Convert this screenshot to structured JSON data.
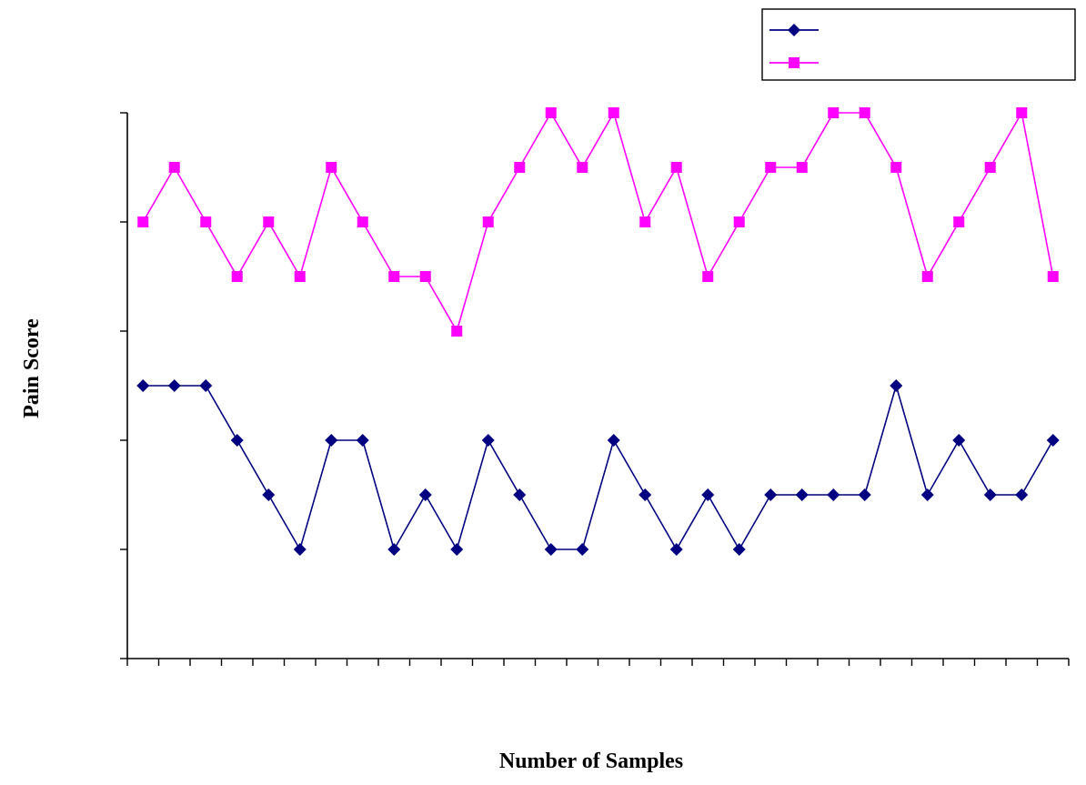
{
  "chart_data": {
    "type": "line",
    "title": "",
    "xlabel": "Number of Samples",
    "ylabel": "Pain Score",
    "x": [
      1,
      2,
      3,
      4,
      5,
      6,
      7,
      8,
      9,
      10,
      11,
      12,
      13,
      14,
      15,
      16,
      17,
      18,
      19,
      20,
      21,
      22,
      23,
      24,
      25,
      26,
      27,
      28,
      29,
      30
    ],
    "xlim": [
      0.5,
      30.5
    ],
    "ylim": [
      0,
      10
    ],
    "grid": false,
    "legend": "top-right",
    "series": [
      {
        "key": "navy",
        "marker": "diamond",
        "color": "#000080",
        "values": [
          5,
          5,
          5,
          4,
          3,
          2,
          4,
          4,
          2,
          3,
          2,
          4,
          3,
          2,
          2,
          4,
          3,
          2,
          3,
          2,
          3,
          3,
          3,
          3,
          5,
          3,
          4,
          3,
          3,
          4
        ]
      },
      {
        "key": "magenta",
        "marker": "square",
        "color": "#ff00ff",
        "values": [
          8,
          9,
          8,
          7,
          8,
          7,
          9,
          8,
          7,
          7,
          6,
          8,
          9,
          10,
          9,
          10,
          8,
          9,
          7,
          8,
          9,
          9,
          10,
          10,
          9,
          7,
          8,
          9,
          10,
          7
        ]
      }
    ]
  }
}
